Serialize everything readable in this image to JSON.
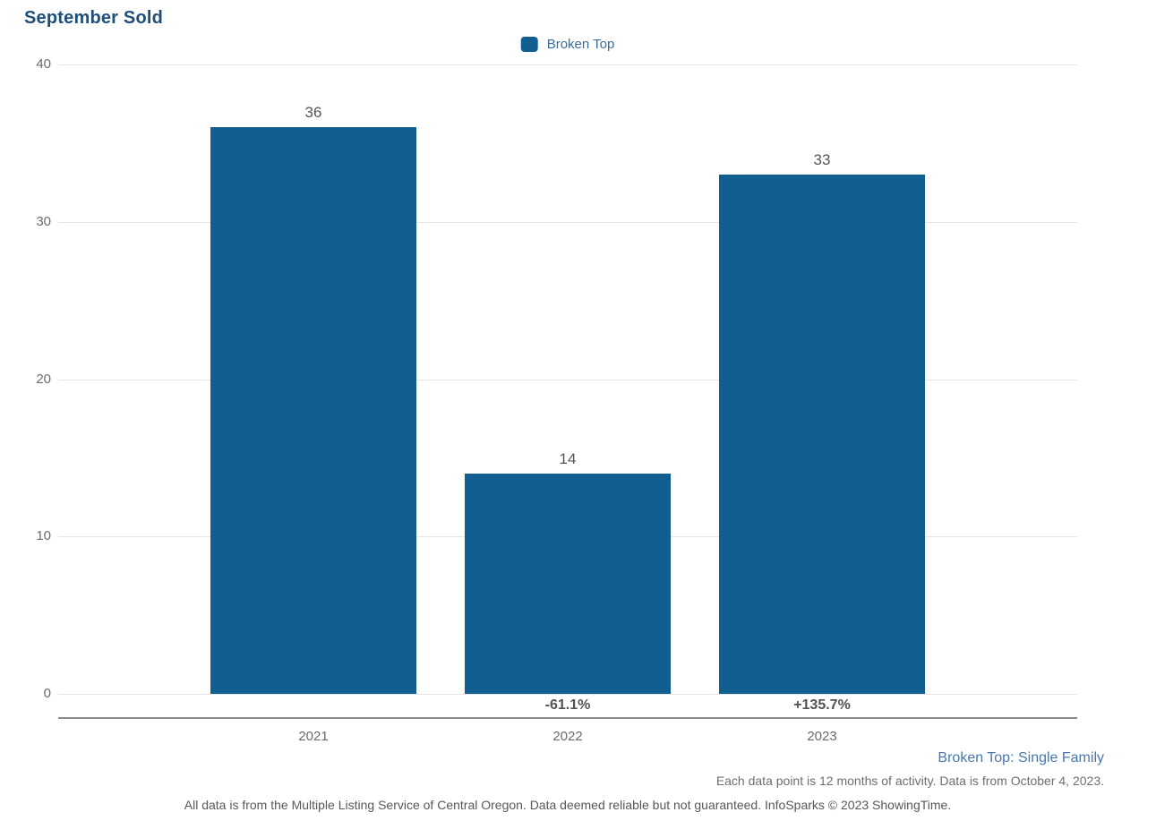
{
  "header": {
    "title": "September Sold"
  },
  "legend": {
    "items": [
      {
        "label": "Broken Top",
        "color": "#115F90"
      }
    ]
  },
  "chart_data": {
    "type": "bar",
    "title": "September Sold",
    "categories": [
      "2021",
      "2022",
      "2023"
    ],
    "series": [
      {
        "name": "Broken Top",
        "values": [
          36,
          14,
          33
        ]
      }
    ],
    "value_labels": [
      "36",
      "14",
      "33"
    ],
    "pct_change_labels": [
      "",
      "-61.1%",
      "+135.7%"
    ],
    "xlabel": "",
    "ylabel": "",
    "ylim": [
      0,
      40
    ],
    "yticks": [
      0,
      10,
      20,
      30,
      40
    ],
    "ytick_labels": [
      "0",
      "10",
      "20",
      "30",
      "40"
    ],
    "grid": true,
    "legend_position": "top-center",
    "bar_color": "#115F90"
  },
  "footer": {
    "series_note": "Broken Top: Single Family",
    "data_note": "Each data point is 12 months of activity. Data is from October 4, 2023.",
    "disclaimer": "All data is from the Multiple Listing Service of Central Oregon. Data deemed reliable but not guaranteed. InfoSparks © 2023 ShowingTime."
  },
  "colors": {
    "title": "#1F4E79",
    "bar": "#115F90",
    "legend_text": "#3C6E96",
    "footer_link_blue": "#4878AC",
    "gridline": "#E4E4E4",
    "axis_line": "#8A8A8A",
    "tick_text": "#6A6A6A"
  }
}
